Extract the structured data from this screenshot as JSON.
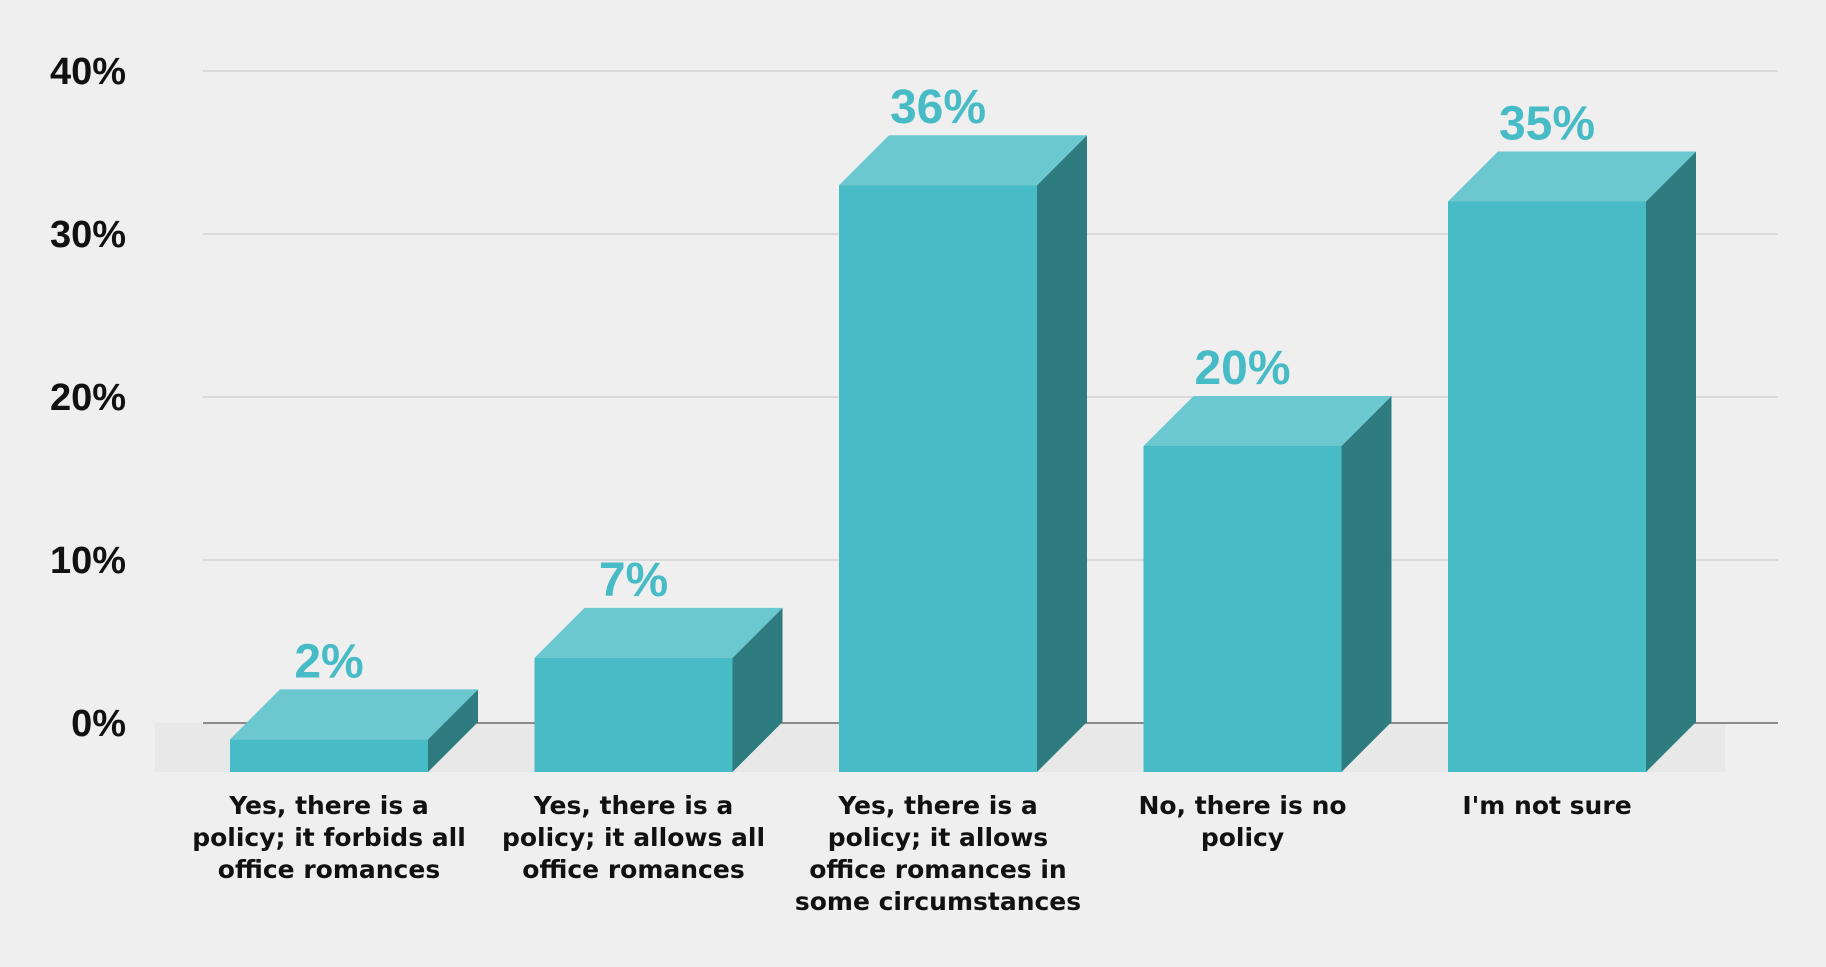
{
  "chart_data": {
    "type": "bar",
    "style": "3d",
    "categories": [
      "Yes, there is a policy; it forbids all office romances",
      "Yes, there is a policy; it allows all office romances",
      "Yes, there is a policy; it allows office romances in some circumstances",
      "No, there is no policy",
      "I'm not sure"
    ],
    "values": [
      2,
      7,
      36,
      20,
      35
    ],
    "value_labels": [
      "2%",
      "7%",
      "36%",
      "20%",
      "35%"
    ],
    "yticks": [
      "0%",
      "10%",
      "20%",
      "30%",
      "40%"
    ],
    "ylim": [
      0,
      40
    ],
    "grid": true,
    "legend": false,
    "colors": {
      "front": "#47bbc6",
      "top": "#6bc8d1",
      "side": "#2e7b80",
      "value_label": "#47bbc6"
    }
  }
}
